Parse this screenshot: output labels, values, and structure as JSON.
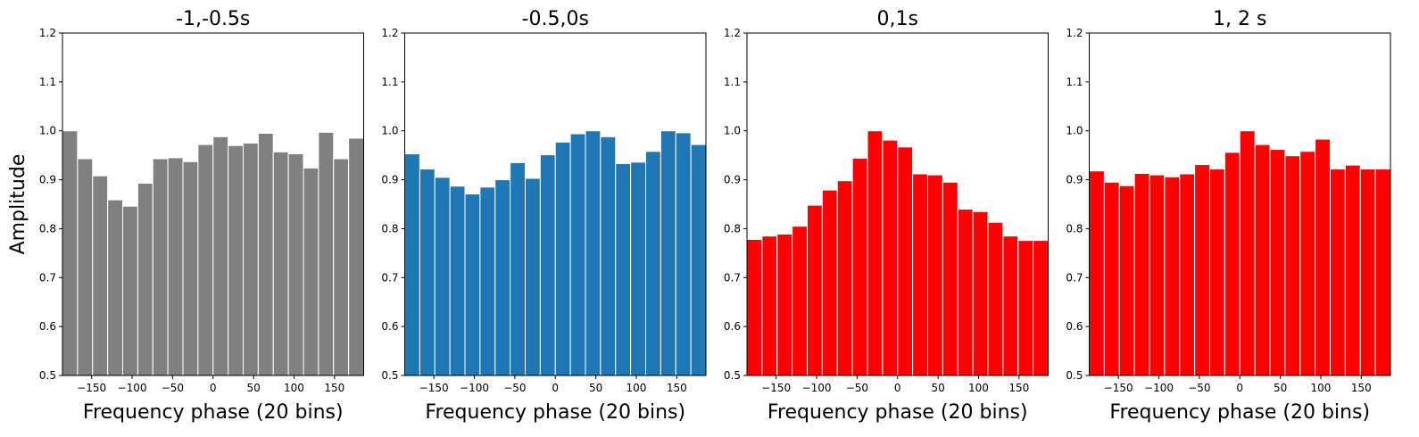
{
  "chart_data": [
    {
      "type": "histogram",
      "title": "-1,-0.5s",
      "xlabel": "Frequency phase (20 bins)",
      "ylabel": "Amplitude",
      "color": "#808080",
      "bins": [
        -186,
        -167.4,
        -148.8,
        -130.2,
        -111.6,
        -93,
        -74.4,
        -55.8,
        -37.2,
        -18.6,
        0,
        18.6,
        37.2,
        55.8,
        74.4,
        93,
        111.6,
        130.2,
        148.8,
        167.4,
        186
      ],
      "values": [
        1.0,
        0.943,
        0.908,
        0.859,
        0.846,
        0.893,
        0.943,
        0.945,
        0.937,
        0.972,
        0.988,
        0.97,
        0.975,
        0.995,
        0.957,
        0.953,
        0.924,
        0.997,
        0.943,
        0.985
      ],
      "xlim": [
        -186,
        186
      ],
      "ylim": [
        0.5,
        1.2
      ],
      "xticks": [
        {
          "value": -150,
          "label": "−150"
        },
        {
          "value": -100,
          "label": "−100"
        },
        {
          "value": -50,
          "label": "−50"
        },
        0,
        50,
        100,
        150
      ],
      "yticks": [
        0.5,
        0.6,
        0.7,
        0.8,
        0.9,
        {
          "value": 1,
          "label": "1.0"
        },
        1.1,
        1.2
      ]
    },
    {
      "type": "histogram",
      "title": "-0.5,0s",
      "xlabel": "Frequency phase (20 bins)",
      "color": "#1f77b4",
      "bins": [
        -186,
        -167.4,
        -148.8,
        -130.2,
        -111.6,
        -93,
        -74.4,
        -55.8,
        -37.2,
        -18.6,
        0,
        18.6,
        37.2,
        55.8,
        74.4,
        93,
        111.6,
        130.2,
        148.8,
        167.4,
        186
      ],
      "values": [
        0.953,
        0.922,
        0.905,
        0.887,
        0.871,
        0.885,
        0.9,
        0.935,
        0.903,
        0.951,
        0.977,
        0.994,
        1.0,
        0.988,
        0.933,
        0.936,
        0.958,
        1.0,
        0.996,
        0.972
      ],
      "xlim": [
        -186,
        186
      ],
      "ylim": [
        0.5,
        1.2
      ],
      "xticks": [
        {
          "value": -150,
          "label": "−150"
        },
        {
          "value": -100,
          "label": "−100"
        },
        {
          "value": -50,
          "label": "−50"
        },
        0,
        50,
        100,
        150
      ],
      "yticks": [
        0.5,
        0.6,
        0.7,
        0.8,
        0.9,
        {
          "value": 1,
          "label": "1.0"
        },
        1.1,
        1.2
      ]
    },
    {
      "type": "histogram",
      "title": "0,1s",
      "xlabel": "Frequency phase (20 bins)",
      "color": "#ff0000",
      "bins": [
        -186,
        -167.4,
        -148.8,
        -130.2,
        -111.6,
        -93,
        -74.4,
        -55.8,
        -37.2,
        -18.6,
        0,
        18.6,
        37.2,
        55.8,
        74.4,
        93,
        111.6,
        130.2,
        148.8,
        167.4,
        186
      ],
      "values": [
        0.778,
        0.785,
        0.789,
        0.805,
        0.848,
        0.879,
        0.898,
        0.944,
        1.0,
        0.981,
        0.967,
        0.912,
        0.91,
        0.895,
        0.84,
        0.835,
        0.813,
        0.785,
        0.776,
        0.776
      ],
      "xlim": [
        -186,
        186
      ],
      "ylim": [
        0.5,
        1.2
      ],
      "xticks": [
        {
          "value": -150,
          "label": "−150"
        },
        {
          "value": -100,
          "label": "−100"
        },
        {
          "value": -50,
          "label": "−50"
        },
        0,
        50,
        100,
        150
      ],
      "yticks": [
        0.5,
        0.6,
        0.7,
        0.8,
        0.9,
        {
          "value": 1,
          "label": "1.0"
        },
        1.1,
        1.2
      ]
    },
    {
      "type": "histogram",
      "title": "1, 2 s",
      "xlabel": "Frequency phase (20 bins)",
      "color": "#ff0000",
      "bins": [
        -186,
        -167.4,
        -148.8,
        -130.2,
        -111.6,
        -93,
        -74.4,
        -55.8,
        -37.2,
        -18.6,
        0,
        18.6,
        37.2,
        55.8,
        74.4,
        93,
        111.6,
        130.2,
        148.8,
        167.4,
        186
      ],
      "values": [
        0.918,
        0.895,
        0.888,
        0.913,
        0.91,
        0.906,
        0.912,
        0.931,
        0.922,
        0.956,
        1.0,
        0.972,
        0.962,
        0.949,
        0.958,
        0.983,
        0.922,
        0.93,
        0.922,
        0.922
      ],
      "xlim": [
        -186,
        186
      ],
      "ylim": [
        0.5,
        1.2
      ],
      "xticks": [
        {
          "value": -150,
          "label": "−150"
        },
        {
          "value": -100,
          "label": "−100"
        },
        {
          "value": -50,
          "label": "−50"
        },
        0,
        50,
        100,
        150
      ],
      "yticks": [
        0.5,
        0.6,
        0.7,
        0.8,
        0.9,
        {
          "value": 1,
          "label": "1.0"
        },
        1.1,
        1.2
      ]
    }
  ]
}
